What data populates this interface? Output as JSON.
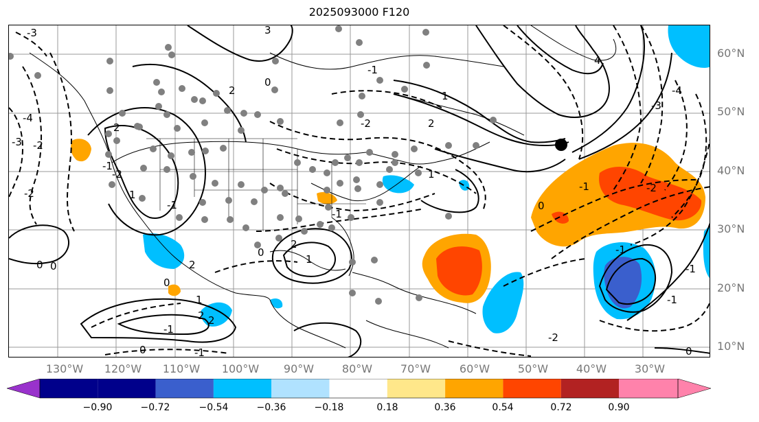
{
  "title": "2025093000 F120",
  "lat_labels": [
    "60°N",
    "50°N",
    "40°N",
    "30°N",
    "20°N",
    "10°N"
  ],
  "lon_labels": [
    "130°W",
    "120°W",
    "110°W",
    "100°W",
    "90°W",
    "80°W",
    "70°W",
    "60°W",
    "50°W",
    "40°W",
    "30°W"
  ],
  "contour_labels": [
    "-3",
    "-3",
    "-4",
    "-2",
    "-2",
    "-1",
    "0",
    "1",
    "2",
    "-2",
    "-1",
    "2",
    "3",
    "4",
    "-4",
    "-3",
    "-2",
    "-1",
    "0",
    "1",
    "2",
    "-2",
    "-1",
    "0",
    "1",
    "2",
    "-1",
    "0",
    "1",
    "2",
    "2",
    "-1",
    "0",
    "1",
    "2",
    "0",
    "-1",
    "0",
    "0",
    "-1",
    "-1",
    "-2",
    "-1"
  ],
  "colorbar": {
    "ticks": [
      "−0.90",
      "−0.72",
      "−0.54",
      "−0.36",
      "−0.18",
      "0.18",
      "0.36",
      "0.54",
      "0.72",
      "0.90"
    ],
    "colors": [
      "#9932cc",
      "#00008b",
      "#3a5fcd",
      "#00bfff",
      "#b0e2ff",
      "#ffffff",
      "#ffe78a",
      "#ffa500",
      "#ff4500",
      "#b22222",
      "#ff82ab"
    ]
  },
  "fill_colors": {
    "orange": "#ffa500",
    "red": "#ff4500",
    "cyan": "#00bfff",
    "blue": "#3a5fcd",
    "dot": "#808080",
    "marker": "#000000"
  }
}
